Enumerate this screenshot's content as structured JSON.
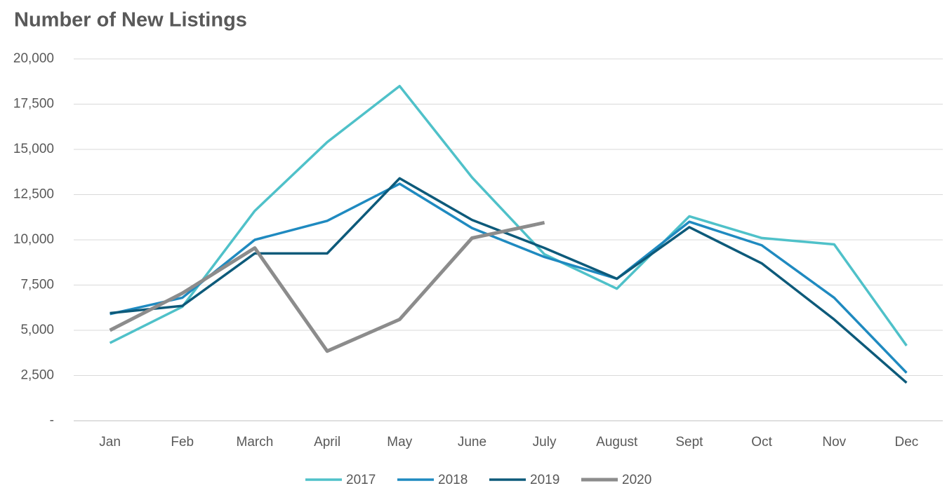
{
  "chart_data": {
    "type": "line",
    "title": "Number of New Listings",
    "categories": [
      "Jan",
      "Feb",
      "March",
      "April",
      "May",
      "June",
      "July",
      "August",
      "Sept",
      "Oct",
      "Nov",
      "Dec"
    ],
    "series": [
      {
        "name": "2017",
        "color": "#4fc1c9",
        "values": [
          4300,
          6300,
          11600,
          15400,
          18500,
          13450,
          9200,
          7300,
          11300,
          10100,
          9750,
          4150
        ]
      },
      {
        "name": "2018",
        "color": "#1f8ac0",
        "values": [
          5900,
          6800,
          10000,
          11050,
          13100,
          10650,
          9050,
          7850,
          11000,
          9700,
          6800,
          2650
        ]
      },
      {
        "name": "2019",
        "color": "#0d5a7a",
        "values": [
          5950,
          6350,
          9250,
          9250,
          13400,
          11100,
          9550,
          7850,
          10700,
          8700,
          5600,
          2100
        ]
      },
      {
        "name": "2020",
        "color": "#8c8c8c",
        "values": [
          5000,
          7050,
          9550,
          3850,
          5600,
          10100,
          10950,
          null,
          null,
          null,
          null,
          null
        ]
      }
    ],
    "ylim": [
      0,
      20000
    ],
    "yticks": [
      {
        "value": 0,
        "label": "-"
      },
      {
        "value": 2500,
        "label": "2,500"
      },
      {
        "value": 5000,
        "label": "5,000"
      },
      {
        "value": 7500,
        "label": "7,500"
      },
      {
        "value": 10000,
        "label": "10,000"
      },
      {
        "value": 12500,
        "label": "12,500"
      },
      {
        "value": 15000,
        "label": "15,000"
      },
      {
        "value": 17500,
        "label": "17,500"
      },
      {
        "value": 20000,
        "label": "20,000"
      }
    ],
    "grid": true,
    "legend": "bottom"
  }
}
